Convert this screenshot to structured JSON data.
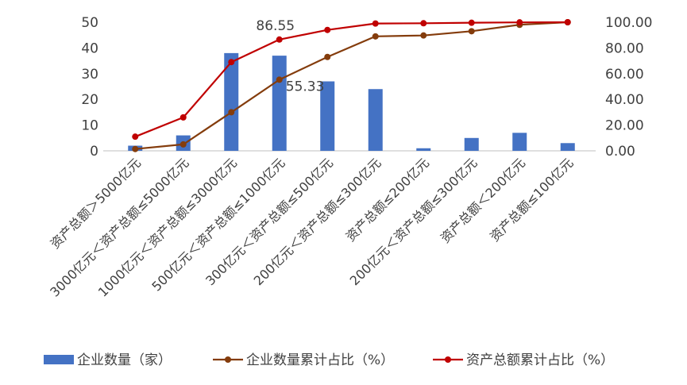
{
  "chart_data": {
    "type": "bar",
    "categories": [
      "资产总额＞5000亿元",
      "3000亿元＜资产总额≤5000亿元",
      "1000亿元＜资产总额≤3000亿元",
      "500亿元＜资产总额≤1000亿元",
      "300亿元＜资产总额≤500亿元",
      "200亿元＜资产总额≤300亿元",
      "资产总额≤200亿元",
      "200亿元＜资产总额≤300亿元",
      "资产总额＜200亿元",
      "资产总额≤100亿元"
    ],
    "series": [
      {
        "name": "企业数量（家）",
        "type": "bar",
        "axis": "left",
        "color": "#4472C4",
        "values": [
          2,
          6,
          38,
          37,
          27,
          24,
          1,
          5,
          7,
          3
        ]
      },
      {
        "name": "企业数量累计占比（%）",
        "type": "line",
        "axis": "right",
        "color": "#843C0C",
        "values": [
          1.4,
          5.0,
          30.0,
          55.33,
          73.0,
          89.0,
          89.7,
          93.0,
          98.0,
          100.0
        ]
      },
      {
        "name": "资产总额累计占比（%）",
        "type": "line",
        "axis": "right",
        "color": "#C00000",
        "values": [
          11.0,
          26.0,
          69.0,
          86.55,
          94.0,
          99.0,
          99.2,
          99.6,
          99.9,
          100.0
        ]
      }
    ],
    "y_left": {
      "min": 0,
      "max": 50,
      "ticks": [
        "0",
        "10",
        "20",
        "30",
        "40",
        "50"
      ]
    },
    "y_right": {
      "min": 0,
      "max": 100,
      "ticks": [
        "0.00",
        "20.00",
        "40.00",
        "60.00",
        "80.00",
        "100.00"
      ]
    },
    "data_labels": [
      {
        "series": 2,
        "index": 3,
        "text": "86.55"
      },
      {
        "series": 1,
        "index": 3,
        "text": "55.33"
      }
    ],
    "grid": false,
    "legend": "bottom"
  }
}
